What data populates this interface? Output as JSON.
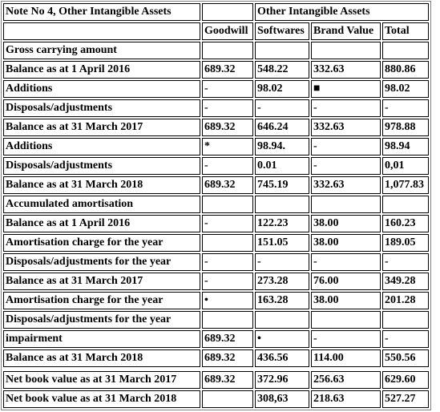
{
  "table": {
    "title": "Note No 4, Other Intangible Assets",
    "group_header": "Other Intangible Assets",
    "columns": [
      "Goodwill",
      "Softwares",
      "Brand Value",
      "Total"
    ],
    "rows": [
      {
        "label": "Gross carrying amount",
        "values": [
          "",
          "",
          "",
          ""
        ]
      },
      {
        "label": "Balance as at 1 April 2016",
        "values": [
          "689.32",
          "548.22",
          "332.63",
          "880.86"
        ]
      },
      {
        "label": "Additions",
        "values": [
          "-",
          "98.02",
          "■",
          "98.02"
        ]
      },
      {
        "label": "Disposals/adjustments",
        "values": [
          "-",
          "-",
          "-",
          "-"
        ]
      },
      {
        "label": "Balance as at 31 March 2017",
        "values": [
          "689.32",
          "646.24",
          "332.63",
          "978.88"
        ]
      },
      {
        "label": "Additions",
        "values": [
          "*",
          "98.94.",
          "-",
          "98.94"
        ]
      },
      {
        "label": "Disposals/adjustments",
        "values": [
          "-",
          "0.01",
          "-",
          "0,01"
        ]
      },
      {
        "label": "Balance as at 31 March 2018",
        "values": [
          "689.32",
          "745.19",
          "332.63",
          "1,077.83"
        ]
      },
      {
        "label": "Accumulated amortisation",
        "values": [
          "",
          "",
          "",
          ""
        ]
      },
      {
        "label": "Balance as at 1 April 2016",
        "values": [
          "-",
          "122.23",
          "38.00",
          "160.23"
        ]
      },
      {
        "label": "Amortisation charge for the year",
        "values": [
          "",
          "151.05",
          "38.00",
          "189.05"
        ]
      },
      {
        "label": "Disposals/adjustments for the year",
        "values": [
          "-",
          "-",
          "-",
          "-"
        ]
      },
      {
        "label": "Balance as at 31 March 2017",
        "values": [
          "-",
          "273.28",
          "76.00",
          "349.28"
        ]
      },
      {
        "label": "Amortisation charge for the year",
        "values": [
          "•",
          "163.28",
          "38.00",
          "201.28"
        ]
      },
      {
        "label": "Disposals/adjustments for the year",
        "values": [
          "",
          "",
          "",
          ""
        ]
      },
      {
        "label": "impairment",
        "values": [
          "689.32",
          "•",
          "-",
          "-"
        ]
      },
      {
        "label": "Balance as at 31 March 2018",
        "values": [
          "689.32",
          "436.56",
          "114.00",
          "550.56"
        ]
      }
    ],
    "net_rows": [
      {
        "label": "Net book value as at 31 March 2017",
        "values": [
          "689.32",
          "372.96",
          "256.63",
          "629.60"
        ]
      },
      {
        "label": "Net book value as at 31 March 2018",
        "values": [
          "",
          "308,63",
          "218.63",
          "527.27"
        ]
      }
    ]
  }
}
